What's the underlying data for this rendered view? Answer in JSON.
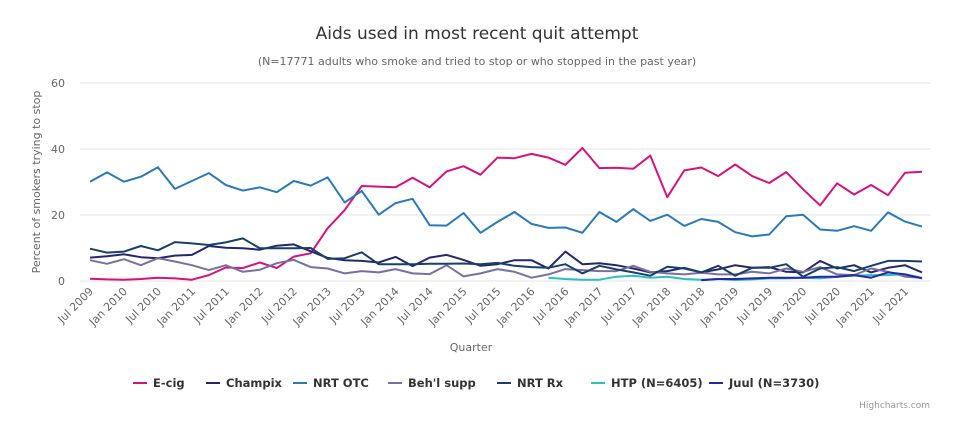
{
  "chart_data": {
    "type": "line",
    "title": "Aids used in most recent quit attempt",
    "subtitle": "(N=17771 adults who smoke and tried to stop or who stopped in the past year)",
    "xlabel": "Quarter",
    "ylabel": "Percent of smokers trying to stop",
    "ylim": [
      0,
      60
    ],
    "yticks": [
      "0",
      "20",
      "40",
      "60"
    ],
    "grid": true,
    "legend_position": "bottom",
    "categories": [
      "Jul 2009",
      "Oct 2009",
      "Jan 2010",
      "Apr 2010",
      "Jul 2010",
      "Oct 2010",
      "Jan 2011",
      "Apr 2011",
      "Jul 2011",
      "Oct 2011",
      "Jan 2012",
      "Apr 2012",
      "Jul 2012",
      "Oct 2012",
      "Jan 2013",
      "Apr 2013",
      "Jul 2013",
      "Oct 2013",
      "Jan 2014",
      "Apr 2014",
      "Jul 2014",
      "Oct 2014",
      "Jan 2015",
      "Apr 2015",
      "Jul 2015",
      "Oct 2015",
      "Jan 2016",
      "Apr 2016",
      "Jul 2016",
      "Oct 2016",
      "Jan 2017",
      "Apr 2017",
      "Jul 2017",
      "Oct 2017",
      "Jan 2018",
      "Apr 2018",
      "Jul 2018",
      "Oct 2018",
      "Jan 2019",
      "Apr 2019",
      "Jul 2019",
      "Oct 2019",
      "Jan 2020",
      "Apr 2020",
      "Jul 2020",
      "Oct 2020",
      "Jan 2021",
      "Apr 2021",
      "Jul 2021",
      "Oct 2021"
    ],
    "xtick_labels": [
      "Jul 2009",
      "Jan 2010",
      "Jul 2010",
      "Jan 2011",
      "Jul 2011",
      "Jan 2012",
      "Jul 2012",
      "Jan 2013",
      "Jul 2013",
      "Jan 2014",
      "Jul 2014",
      "Jan 2015",
      "Jul 2015",
      "Jan 2016",
      "Jul 2016",
      "Jan 2017",
      "Jul 2017",
      "Jan 2018",
      "Jul 2018",
      "Jan 2019",
      "Jul 2019",
      "Jan 2020",
      "Jul 2020",
      "Jan 2021",
      "Jul 2021"
    ],
    "series": [
      {
        "name": "E-cig",
        "color": "#d6137a",
        "values": [
          0.7,
          0.5,
          0.4,
          0.6,
          1.0,
          0.8,
          0.4,
          1.8,
          4.1,
          3.9,
          5.6,
          3.9,
          7.4,
          8.4,
          16.0,
          21.5,
          28.8,
          28.6,
          28.4,
          31.3,
          28.4,
          33.2,
          34.8,
          32.2,
          37.4,
          37.2,
          38.5,
          37.4,
          35.2,
          40.3,
          34.2,
          34.3,
          34.0,
          38.0,
          25.4,
          33.5,
          34.4,
          31.8,
          35.3,
          31.8,
          29.7,
          33.0,
          27.8,
          22.9,
          29.6,
          26.2,
          29.1,
          26.0,
          32.8,
          33.1
        ]
      },
      {
        "name": "Champix",
        "color": "#25276b",
        "values": [
          7.1,
          7.5,
          8.1,
          7.2,
          6.9,
          7.7,
          7.9,
          10.6,
          10.1,
          9.9,
          9.5,
          10.7,
          11.1,
          9.0,
          7.0,
          6.3,
          6.1,
          5.6,
          7.3,
          4.5,
          7.1,
          7.9,
          6.4,
          4.6,
          5.1,
          6.3,
          6.3,
          3.8,
          8.9,
          5.1,
          5.4,
          4.8,
          3.8,
          2.6,
          3.0,
          4.0,
          2.6,
          3.5,
          4.8,
          4.0,
          4.2,
          2.8,
          2.6,
          6.1,
          3.8,
          4.8,
          2.6,
          4.0,
          4.8,
          2.6
        ]
      },
      {
        "name": "NRT OTC",
        "color": "#2a7ab9",
        "values": [
          30.1,
          32.9,
          30.1,
          31.6,
          34.5,
          27.9,
          30.3,
          32.7,
          29.1,
          27.4,
          28.4,
          26.9,
          30.3,
          28.9,
          31.4,
          23.8,
          27.3,
          20.1,
          23.6,
          24.9,
          16.9,
          16.8,
          20.6,
          14.6,
          17.9,
          20.9,
          17.3,
          16.1,
          16.2,
          14.6,
          20.9,
          17.9,
          21.8,
          18.2,
          20.1,
          16.7,
          18.8,
          17.9,
          14.8,
          13.5,
          14.1,
          19.6,
          20.1,
          15.6,
          15.2,
          16.6,
          15.2,
          20.8,
          18.0,
          16.5
        ]
      },
      {
        "name": "Beh'l supp",
        "color": "#7a6fa0",
        "values": [
          6.3,
          5.2,
          6.6,
          4.8,
          6.9,
          5.9,
          4.8,
          3.3,
          4.8,
          2.8,
          3.4,
          5.4,
          6.4,
          4.2,
          3.8,
          2.3,
          3.0,
          2.6,
          3.6,
          2.3,
          2.1,
          4.8,
          1.4,
          2.3,
          3.6,
          2.8,
          1.0,
          2.0,
          3.6,
          3.3,
          3.0,
          3.0,
          4.6,
          2.8,
          2.3,
          2.0,
          2.5,
          2.0,
          2.0,
          2.8,
          2.3,
          3.8,
          2.8,
          4.2,
          2.0,
          1.8,
          3.8,
          2.8,
          1.3,
          1.0
        ]
      },
      {
        "name": "NRT Rx",
        "color": "#17406a",
        "values": [
          9.8,
          8.6,
          8.9,
          10.6,
          9.3,
          11.8,
          11.4,
          10.9,
          11.7,
          12.9,
          9.9,
          9.9,
          9.9,
          10.0,
          6.7,
          6.9,
          8.7,
          5.1,
          5.1,
          5.1,
          5.2,
          5.2,
          5.3,
          5.1,
          5.5,
          4.6,
          4.2,
          4.0,
          5.1,
          2.3,
          4.6,
          3.5,
          2.6,
          1.6,
          4.3,
          3.8,
          2.6,
          4.6,
          1.6,
          4.0,
          4.0,
          5.1,
          1.3,
          3.8,
          4.2,
          3.0,
          4.6,
          6.1,
          6.1,
          5.9
        ]
      },
      {
        "name": "HTP (N=6405)",
        "color": "#2bbfc0",
        "values": [
          null,
          null,
          null,
          null,
          null,
          null,
          null,
          null,
          null,
          null,
          null,
          null,
          null,
          null,
          null,
          null,
          null,
          null,
          null,
          null,
          null,
          null,
          null,
          null,
          null,
          null,
          null,
          1.0,
          0.6,
          0.4,
          0.4,
          1.3,
          1.6,
          1.0,
          1.3,
          0.6,
          0.4,
          0.6,
          0.3,
          0.5,
          0.8,
          0.8,
          1.0,
          0.8,
          1.3,
          1.6,
          1.8,
          1.8,
          2.0,
          1.0
        ]
      },
      {
        "name": "Juul (N=3730)",
        "color": "#2626a8",
        "values": [
          null,
          null,
          null,
          null,
          null,
          null,
          null,
          null,
          null,
          null,
          null,
          null,
          null,
          null,
          null,
          null,
          null,
          null,
          null,
          null,
          null,
          null,
          null,
          null,
          null,
          null,
          null,
          null,
          null,
          null,
          null,
          null,
          null,
          null,
          null,
          null,
          0.2,
          0.6,
          0.6,
          0.8,
          1.0,
          1.0,
          1.0,
          1.3,
          1.3,
          1.8,
          1.0,
          2.6,
          2.0,
          0.8
        ]
      }
    ]
  },
  "credits": "Highcharts.com"
}
